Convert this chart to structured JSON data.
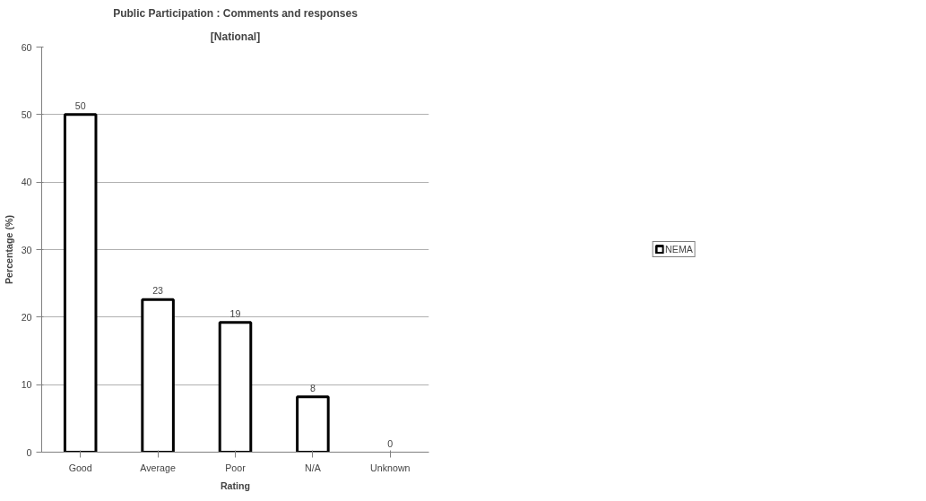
{
  "chart_data": {
    "type": "bar",
    "title": "Public Participation : Comments and responses",
    "subtitle": "[National]",
    "xlabel": "Rating",
    "ylabel": "Percentage (%)",
    "categories": [
      "Good",
      "Average",
      "Poor",
      "N/A",
      "Unknown"
    ],
    "series": [
      {
        "name": "NEMA",
        "color": "#ffffff",
        "values": [
          50,
          22.6,
          19.2,
          8.2,
          0
        ],
        "value_labels": [
          "50",
          "23",
          "19",
          "8",
          "0"
        ]
      }
    ],
    "ylim": [
      0,
      60
    ],
    "yticks": [
      0,
      10,
      20,
      30,
      40,
      50,
      60
    ],
    "grid": "y",
    "legend": "right"
  }
}
